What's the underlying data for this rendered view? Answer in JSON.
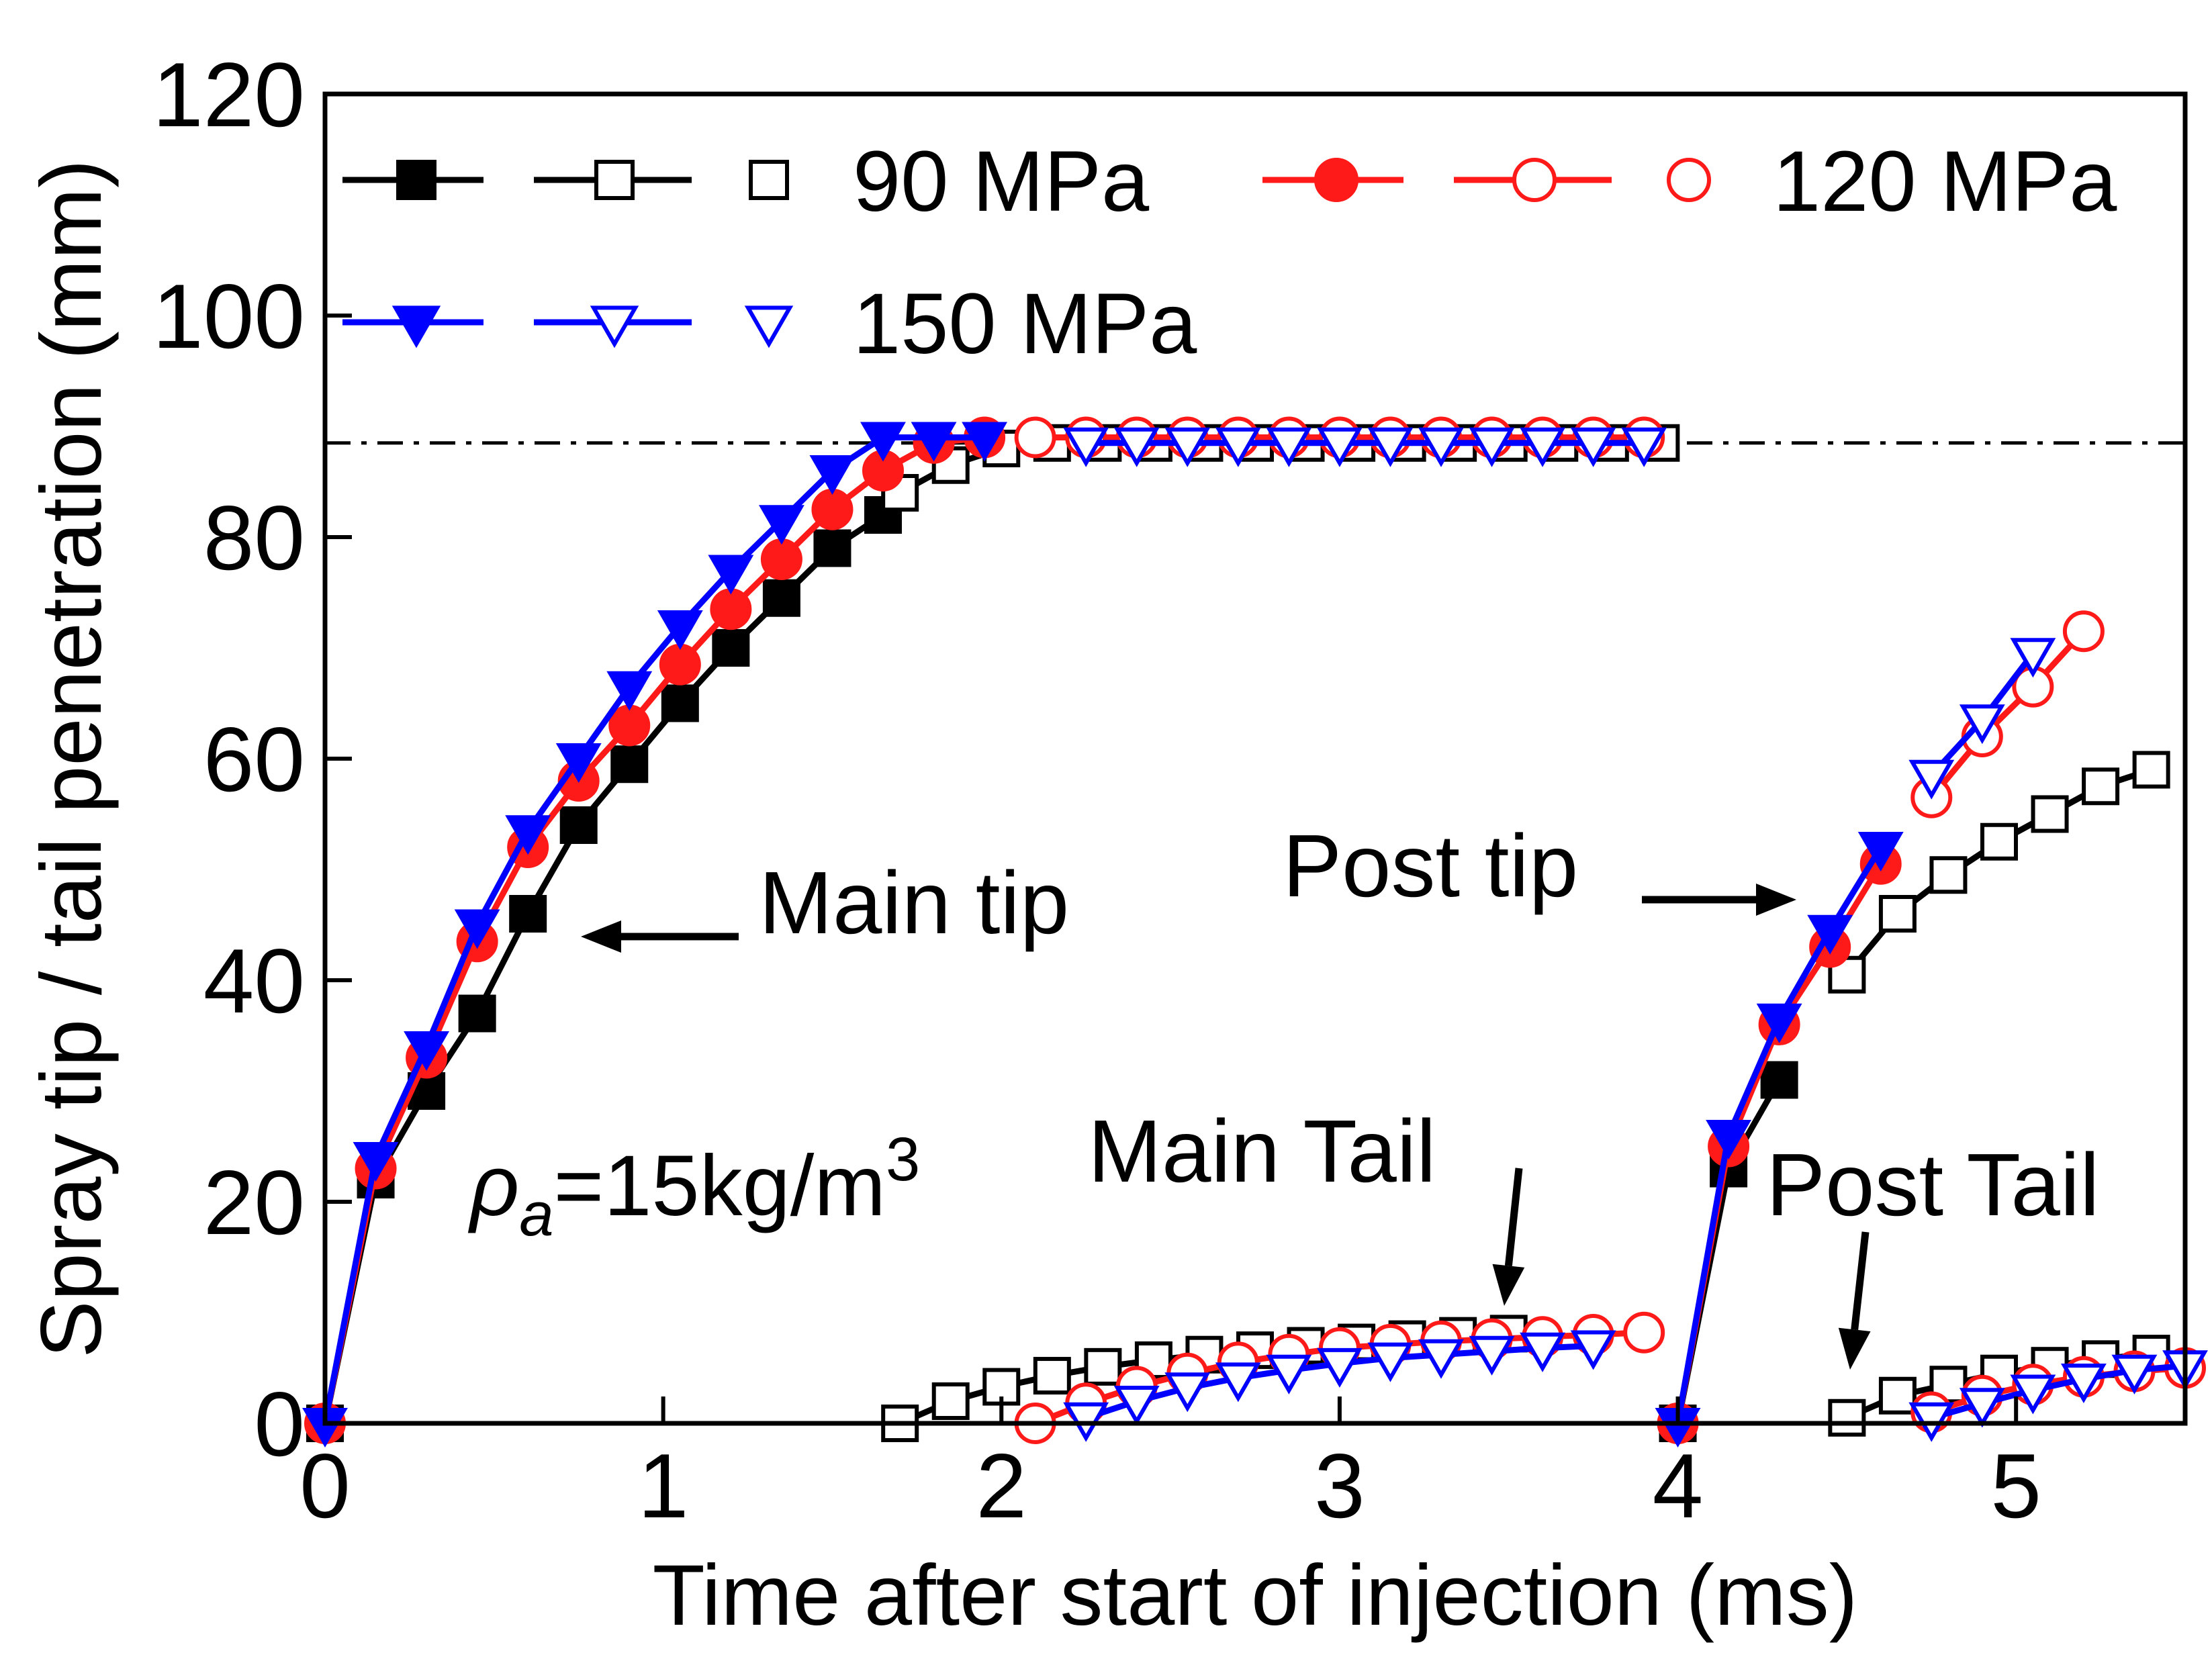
{
  "chart_data": {
    "type": "line",
    "title": "",
    "xlabel": "Time after start of injection (ms)",
    "ylabel": "Spray tip / tail penetration (mm)",
    "xlim": [
      0,
      5.5
    ],
    "ylim": [
      0,
      120
    ],
    "xticks": [
      0,
      1,
      2,
      3,
      4,
      5
    ],
    "yticks": [
      0,
      20,
      40,
      60,
      80,
      100,
      120
    ],
    "grid": false,
    "reference_line": {
      "y": 88.5,
      "style": "dash-dot"
    },
    "legend": {
      "placement": "top-left",
      "entries": [
        {
          "label": "90 MPa",
          "color": "#000000"
        },
        {
          "label": "120 MPa",
          "color": "#ff1a1a"
        },
        {
          "label": "150 MPa",
          "color": "#0000ff"
        }
      ]
    },
    "annotations": [
      {
        "text": "Main tip",
        "arrow": "left"
      },
      {
        "text": "Post tip",
        "arrow": "right"
      },
      {
        "text": "Main Tail",
        "arrow": "down"
      },
      {
        "text": "Post Tail",
        "arrow": "down"
      }
    ],
    "condition": {
      "symbol": "ρ",
      "subscript": "a",
      "text": "=15kg/m",
      "superscript": "3"
    },
    "series": [
      {
        "name": "90 MPa main tip",
        "color": "#000000",
        "marker": "square",
        "fill": "filled",
        "x": [
          0.0,
          0.15,
          0.3,
          0.45,
          0.6,
          0.75,
          0.9,
          1.05,
          1.2,
          1.35,
          1.5,
          1.65
        ],
        "y": [
          0,
          22,
          30,
          37,
          46,
          54,
          59.5,
          65,
          70,
          74.5,
          79,
          82
        ]
      },
      {
        "name": "90 MPa main tip (cont.)",
        "color": "#000000",
        "marker": "square",
        "fill": "open",
        "x": [
          1.7,
          1.85,
          2.0,
          2.15,
          2.3,
          2.45,
          2.6,
          2.75,
          2.9,
          3.05,
          3.2,
          3.35,
          3.5,
          3.65,
          3.8,
          3.95
        ],
        "y": [
          84,
          86.5,
          88,
          88.5,
          88.5,
          88.5,
          88.5,
          88.5,
          88.5,
          88.5,
          88.5,
          88.5,
          88.5,
          88.5,
          88.5,
          88.5
        ]
      },
      {
        "name": "90 MPa main tail",
        "color": "#000000",
        "marker": "square",
        "fill": "open",
        "x": [
          1.7,
          1.85,
          2.0,
          2.15,
          2.3,
          2.45,
          2.6,
          2.75,
          2.9,
          3.05,
          3.2,
          3.35,
          3.5
        ],
        "y": [
          0,
          2,
          3.3,
          4.3,
          5.1,
          5.7,
          6.2,
          6.6,
          7,
          7.3,
          7.6,
          7.9,
          8.1
        ]
      },
      {
        "name": "120 MPa main tip",
        "color": "#ff1a1a",
        "marker": "circle",
        "fill": "filled",
        "x": [
          0.0,
          0.15,
          0.3,
          0.45,
          0.6,
          0.75,
          0.9,
          1.05,
          1.2,
          1.35,
          1.5,
          1.65,
          1.8,
          1.95
        ],
        "y": [
          0,
          23,
          33,
          43.5,
          52,
          58,
          63,
          68.5,
          73.5,
          78,
          82.5,
          86,
          88.5,
          89
        ]
      },
      {
        "name": "120 MPa main tip (cont.)",
        "color": "#ff1a1a",
        "marker": "circle",
        "fill": "open",
        "x": [
          2.1,
          2.25,
          2.4,
          2.55,
          2.7,
          2.85,
          3.0,
          3.15,
          3.3,
          3.45,
          3.6,
          3.75,
          3.9
        ],
        "y": [
          89,
          89,
          89,
          89,
          89,
          89,
          89,
          89,
          89,
          89,
          89,
          89,
          89
        ]
      },
      {
        "name": "120 MPa main tail",
        "color": "#ff1a1a",
        "marker": "circle",
        "fill": "open",
        "x": [
          2.1,
          2.25,
          2.4,
          2.55,
          2.7,
          2.85,
          3.0,
          3.15,
          3.3,
          3.45,
          3.6,
          3.75,
          3.9
        ],
        "y": [
          0,
          1.8,
          3.3,
          4.5,
          5.5,
          6.2,
          6.8,
          7.1,
          7.4,
          7.6,
          7.8,
          8,
          8.2
        ]
      },
      {
        "name": "150 MPa main tip",
        "color": "#0000ff",
        "marker": "triangle-down",
        "fill": "filled",
        "x": [
          0.0,
          0.15,
          0.3,
          0.45,
          0.6,
          0.75,
          0.9,
          1.05,
          1.2,
          1.35,
          1.5,
          1.65,
          1.8,
          1.95
        ],
        "y": [
          0,
          24,
          34,
          45,
          53.5,
          60,
          66.5,
          72,
          77,
          81.5,
          86,
          89,
          89,
          89
        ]
      },
      {
        "name": "150 MPa main tip (cont.)",
        "color": "#0000ff",
        "marker": "triangle-down",
        "fill": "open",
        "x": [
          2.25,
          2.4,
          2.55,
          2.7,
          2.85,
          3.0,
          3.15,
          3.3,
          3.45,
          3.6,
          3.75,
          3.9
        ],
        "y": [
          88.5,
          88.5,
          88.5,
          88.5,
          88.5,
          88.5,
          88.5,
          88.5,
          88.5,
          88.5,
          88.5,
          88.5
        ]
      },
      {
        "name": "150 MPa main tail",
        "color": "#0000ff",
        "marker": "triangle-down",
        "fill": "open",
        "x": [
          2.25,
          2.4,
          2.55,
          2.7,
          2.85,
          3.0,
          3.15,
          3.3,
          3.45,
          3.6,
          3.75
        ],
        "y": [
          0.5,
          2,
          3.2,
          4.1,
          4.8,
          5.4,
          5.9,
          6.2,
          6.5,
          6.8,
          7
        ]
      },
      {
        "name": "90 MPa post tip",
        "color": "#000000",
        "marker": "square",
        "fill": "filled",
        "x": [
          4.0,
          4.15,
          4.3
        ],
        "y": [
          0,
          23,
          31
        ]
      },
      {
        "name": "90 MPa post tip (cont.)",
        "color": "#000000",
        "marker": "square",
        "fill": "open",
        "x": [
          4.5,
          4.65,
          4.8,
          4.95,
          5.1,
          5.25,
          5.4
        ],
        "y": [
          40.5,
          46,
          49.5,
          52.5,
          55,
          57.5,
          59
        ]
      },
      {
        "name": "90 MPa post tail",
        "color": "#000000",
        "marker": "square",
        "fill": "open",
        "x": [
          4.5,
          4.65,
          4.8,
          4.95,
          5.1,
          5.25,
          5.4
        ],
        "y": [
          0.5,
          2.5,
          3.5,
          4.5,
          5.2,
          5.8,
          6.3
        ]
      },
      {
        "name": "120 MPa post tip",
        "color": "#ff1a1a",
        "marker": "circle",
        "fill": "filled",
        "x": [
          4.0,
          4.15,
          4.3,
          4.45,
          4.6
        ],
        "y": [
          0,
          25,
          36,
          43,
          50.5
        ]
      },
      {
        "name": "120 MPa post tip (cont.)",
        "color": "#ff1a1a",
        "marker": "circle",
        "fill": "open",
        "x": [
          4.75,
          4.9,
          5.05,
          5.2
        ],
        "y": [
          56.5,
          62,
          66.5,
          71.5
        ]
      },
      {
        "name": "120 MPa post tail",
        "color": "#ff1a1a",
        "marker": "circle",
        "fill": "open",
        "x": [
          4.75,
          4.9,
          5.05,
          5.2,
          5.35,
          5.5
        ],
        "y": [
          1,
          2.5,
          3.5,
          4.2,
          4.7,
          5
        ]
      },
      {
        "name": "150 MPa post tip",
        "color": "#0000ff",
        "marker": "triangle-down",
        "fill": "filled",
        "x": [
          4.0,
          4.15,
          4.3,
          4.45,
          4.6
        ],
        "y": [
          0,
          26,
          36.5,
          44.5,
          52
        ]
      },
      {
        "name": "150 MPa post tip (cont.)",
        "color": "#0000ff",
        "marker": "triangle-down",
        "fill": "open",
        "x": [
          4.75,
          4.9,
          5.05
        ],
        "y": [
          58.5,
          63.5,
          69.5
        ]
      },
      {
        "name": "150 MPa post tail",
        "color": "#0000ff",
        "marker": "triangle-down",
        "fill": "open",
        "x": [
          4.75,
          4.9,
          5.05,
          5.2,
          5.35,
          5.5
        ],
        "y": [
          0.5,
          1.8,
          3,
          4,
          4.8,
          5.2
        ]
      }
    ]
  }
}
